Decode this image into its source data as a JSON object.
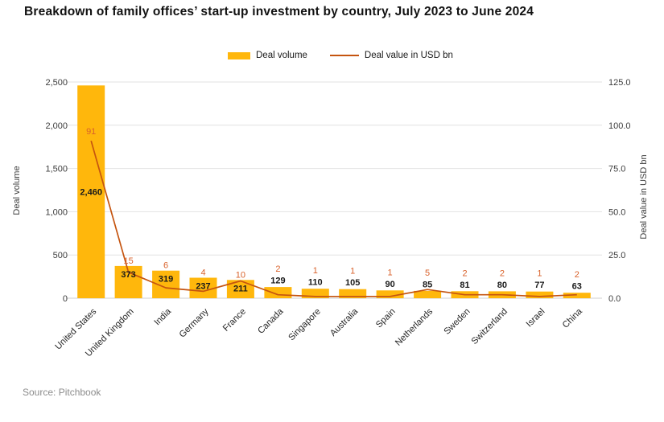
{
  "title": "Breakdown of family offices’ start-up investment by country, July 2023 to June 2024",
  "legend": {
    "deal_volume_label": "Deal volume",
    "deal_value_label": "Deal value in USD bn"
  },
  "source": "Source: Pitchbook",
  "colors": {
    "bar": "#FFB70C",
    "line": "#C5540F",
    "line_label": "#D9622B",
    "bar_label": "#1A1A1A",
    "grid": "#E2E2E2",
    "zero_line": "#CFCFCF",
    "tick_text": "#3C3C3C",
    "axis_title_text": "#3C3C3C",
    "category_text": "#262626",
    "source_text": "#8C8C8C"
  },
  "chart_data": {
    "type": "bar",
    "subtype": "bar-line-combo",
    "title": "Breakdown of family offices’ start-up investment by country, July 2023 to June 2024",
    "categories": [
      "United States",
      "United Kingdom",
      "India",
      "Germany",
      "France",
      "Canada",
      "Singapore",
      "Australia",
      "Spain",
      "Netherlands",
      "Sweden",
      "Switzerland",
      "Israel",
      "China"
    ],
    "series": [
      {
        "name": "Deal volume",
        "type": "bar",
        "axis": "left",
        "values": [
          2460,
          373,
          319,
          237,
          211,
          129,
          110,
          105,
          90,
          85,
          81,
          80,
          77,
          63
        ]
      },
      {
        "name": "Deal value in USD bn",
        "type": "line",
        "axis": "right",
        "values": [
          91,
          15,
          6,
          4,
          10,
          2,
          1,
          1,
          1,
          5,
          2,
          2,
          1,
          2
        ]
      }
    ],
    "bar_value_labels": [
      "2,460",
      "373",
      "319",
      "237",
      "211",
      "129",
      "110",
      "105",
      "90",
      "85",
      "81",
      "80",
      "77",
      "63"
    ],
    "line_value_labels": [
      "91",
      "15",
      "6",
      "4",
      "10",
      "2",
      "1",
      "1",
      "1",
      "5",
      "2",
      "2",
      "1",
      "2"
    ],
    "left_axis": {
      "label": "Deal volume",
      "min": 0,
      "max": 2500,
      "tick_values": [
        0,
        500,
        1000,
        1500,
        2000,
        2500
      ],
      "tick_labels": [
        "0",
        "500",
        "1,000",
        "1,500",
        "2,000",
        "2,500"
      ]
    },
    "right_axis": {
      "label": "Deal value in USD bn",
      "min": 0,
      "max": 125,
      "tick_values": [
        0,
        25,
        50,
        75,
        100,
        125
      ],
      "tick_labels": [
        "0.0",
        "25.0",
        "50.0",
        "75.0",
        "100.0",
        "125.0"
      ]
    },
    "grid": true,
    "legend_position": "top-center"
  }
}
